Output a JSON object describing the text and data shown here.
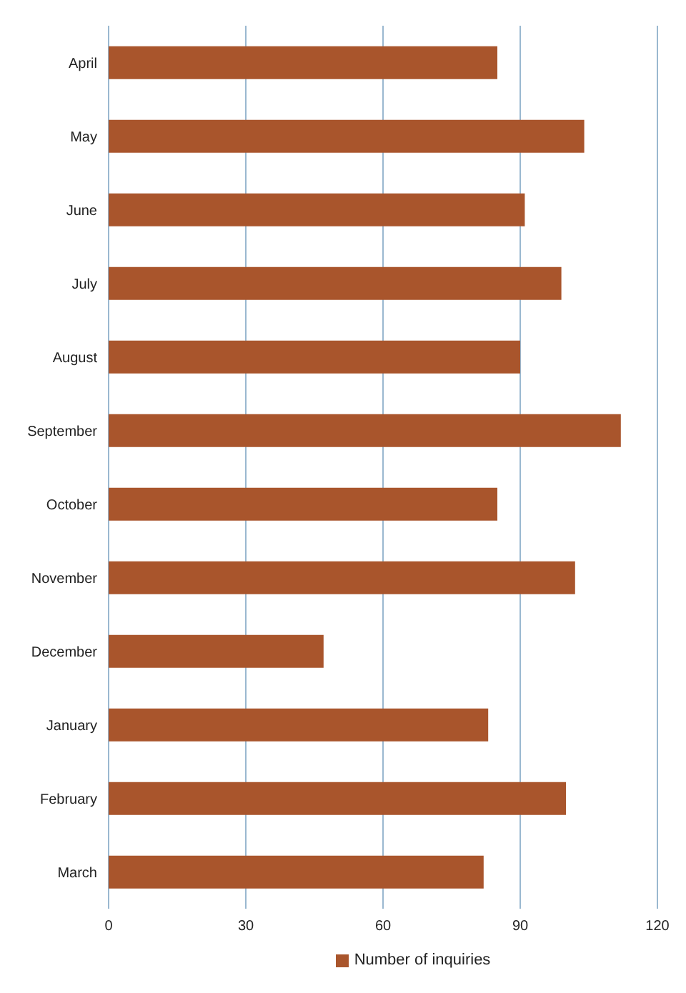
{
  "chart_data": {
    "type": "bar",
    "orientation": "horizontal",
    "categories": [
      "April",
      "May",
      "June",
      "July",
      "August",
      "September",
      "October",
      "November",
      "December",
      "January",
      "February",
      "March"
    ],
    "series": [
      {
        "name": "Number of inquiries",
        "color": "#a9552c",
        "values": [
          85,
          104,
          91,
          99,
          90,
          112,
          85,
          102,
          47,
          83,
          100,
          82
        ]
      }
    ],
    "xlim": [
      0,
      120
    ],
    "xticks": [
      0,
      30,
      60,
      90,
      120
    ],
    "grid": "x",
    "legend": "bottom"
  }
}
